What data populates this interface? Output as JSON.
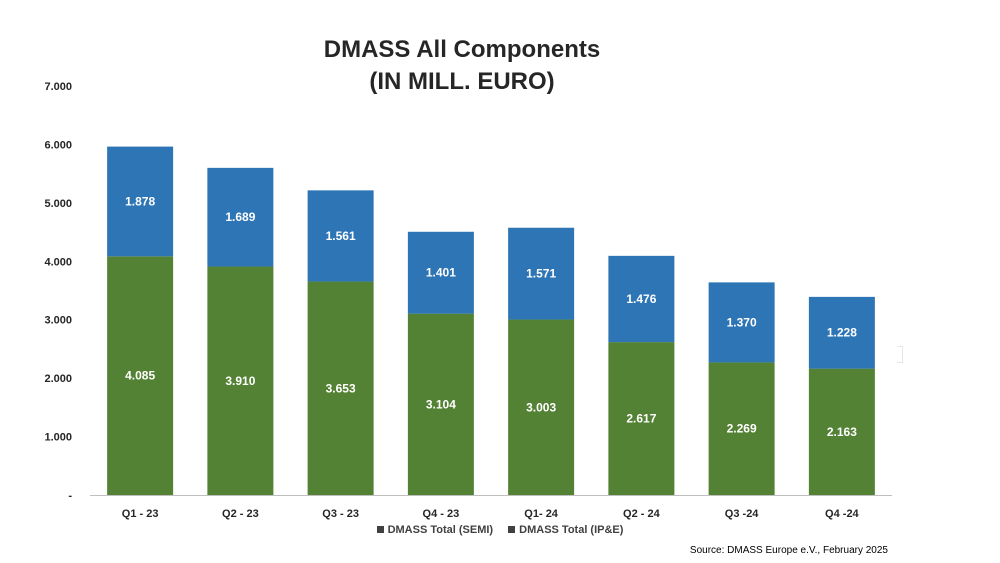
{
  "chart_data": {
    "type": "bar",
    "stacked": true,
    "title_lines": [
      "DMASS All Components",
      "(IN MILL. EURO)"
    ],
    "categories": [
      "Q1 - 23",
      "Q2 - 23",
      "Q3 - 23",
      "Q4 - 23",
      "Q1- 24",
      "Q2 - 24",
      "Q3 -24",
      "Q4 -24"
    ],
    "series": [
      {
        "name": "DMASS Total (IP&E)",
        "color": "#548235",
        "values": [
          4085,
          3910,
          3653,
          3104,
          3003,
          2617,
          2269,
          2163
        ],
        "labels": [
          "4.085",
          "3.910",
          "3.653",
          "3.104",
          "3.003",
          "2.617",
          "2.269",
          "2.163"
        ]
      },
      {
        "name": "DMASS Total (SEMI)",
        "color": "#2E75B6",
        "values": [
          1878,
          1689,
          1561,
          1401,
          1571,
          1476,
          1370,
          1228
        ],
        "labels": [
          "1.878",
          "1.689",
          "1.561",
          "1.401",
          "1.571",
          "1.476",
          "1.370",
          "1.228"
        ]
      }
    ],
    "ylim": [
      0,
      7000
    ],
    "yticks": [
      0,
      1000,
      2000,
      3000,
      4000,
      5000,
      6000,
      7000
    ],
    "ytick_labels": [
      "-",
      "1.000",
      "2.000",
      "3.000",
      "4.000",
      "5.000",
      "6.000",
      "7.000"
    ],
    "grid": false,
    "legend_position": "bottom",
    "legend": [
      {
        "label": "DMASS Total (SEMI)",
        "color": "#2E75B6"
      },
      {
        "label": "DMASS Total  (IP&E)",
        "color": "#548235"
      }
    ],
    "source": "Source: DMASS Europe e.V., February 2025"
  }
}
